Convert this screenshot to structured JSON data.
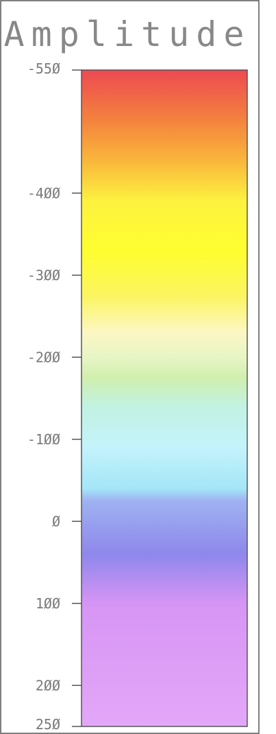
{
  "chart_data": {
    "type": "heatmap",
    "title": "Amplitude",
    "orientation": "vertical",
    "range": [
      -550,
      250
    ],
    "ticks": [
      -550,
      -400,
      -300,
      -200,
      -100,
      0,
      100,
      200,
      250
    ],
    "tick_labels": [
      "-55Ø",
      "-4ØØ",
      "-3ØØ",
      "-2ØØ",
      "-1ØØ",
      "Ø",
      "1ØØ",
      "2ØØ",
      "25Ø"
    ],
    "color_stops": [
      {
        "value": -550,
        "color": "#ed4a52"
      },
      {
        "value": -490,
        "color": "#f4813e"
      },
      {
        "value": -440,
        "color": "#f9b63c"
      },
      {
        "value": -390,
        "color": "#fdf240"
      },
      {
        "value": -330,
        "color": "#fefe30"
      },
      {
        "value": -275,
        "color": "#fcf560"
      },
      {
        "value": -230,
        "color": "#fcf7c4"
      },
      {
        "value": -200,
        "color": "#e8f5c6"
      },
      {
        "value": -175,
        "color": "#d0efad"
      },
      {
        "value": -140,
        "color": "#c2f2e2"
      },
      {
        "value": -90,
        "color": "#c4f3fc"
      },
      {
        "value": -40,
        "color": "#a4e6f7"
      },
      {
        "value": -25,
        "color": "#9fb2f1"
      },
      {
        "value": 40,
        "color": "#8f87ec"
      },
      {
        "value": 100,
        "color": "#d695f4"
      },
      {
        "value": 250,
        "color": "#e3a7f8"
      }
    ]
  }
}
